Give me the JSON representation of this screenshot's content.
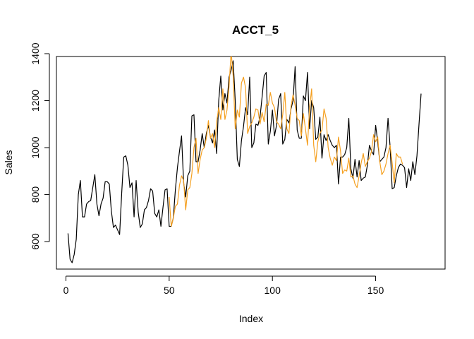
{
  "chart_data": {
    "type": "line",
    "title": "ACCT_5",
    "xlabel": "Index",
    "ylabel": "Sales",
    "xlim": [
      1,
      177
    ],
    "ylim": [
      510,
      1400
    ],
    "xticks": [
      0,
      50,
      100,
      150
    ],
    "yticks": [
      600,
      800,
      1000,
      1200,
      1400
    ],
    "grid": false,
    "colors": {
      "actual": "#000000",
      "fitted": "#f5a020"
    },
    "series": [
      {
        "key": "actual",
        "x_start": 1,
        "values": [
          635,
          525,
          510,
          545,
          610,
          800,
          860,
          705,
          705,
          760,
          770,
          775,
          830,
          885,
          760,
          710,
          760,
          785,
          855,
          855,
          845,
          730,
          660,
          670,
          650,
          630,
          805,
          960,
          965,
          925,
          830,
          850,
          705,
          860,
          725,
          660,
          675,
          735,
          745,
          775,
          825,
          815,
          720,
          705,
          735,
          665,
          745,
          820,
          825,
          665,
          665,
          700,
          820,
          915,
          985,
          1050,
          850,
          790,
          880,
          900,
          1135,
          1140,
          940,
          940,
          990,
          1060,
          1000,
          1060,
          1095,
          1045,
          1020,
          1075,
          975,
          1200,
          1305,
          1160,
          1230,
          1190,
          1300,
          1330,
          1370,
          1200,
          950,
          920,
          1030,
          1090,
          1170,
          1140,
          1300,
          1000,
          1020,
          1100,
          1095,
          1130,
          1215,
          1305,
          1320,
          1015,
          1070,
          1160,
          1050,
          1095,
          1205,
          1230,
          1015,
          1035,
          1120,
          1105,
          1165,
          1200,
          1345,
          1075,
          1040,
          1040,
          1220,
          1200,
          1320,
          1080,
          1200,
          1170,
          1035,
          1045,
          1130,
          955,
          1055,
          1030,
          1055,
          1030,
          1010,
          1000,
          1010,
          845,
          960,
          960,
          970,
          1000,
          1125,
          910,
          870,
          950,
          875,
          945,
          860,
          870,
          875,
          925,
          1010,
          985,
          970,
          1095,
          1025,
          940,
          950,
          960,
          1000,
          1125,
          1005,
          825,
          830,
          880,
          915,
          930,
          925,
          915,
          830,
          910,
          860,
          940,
          885,
          965,
          1100,
          1230
        ]
      },
      {
        "key": "fitted",
        "x_start": 50,
        "values": [
          790,
          665,
          700,
          750,
          760,
          840,
          880,
          860,
          735,
          820,
          830,
          890,
          1000,
          1040,
          890,
          950,
          990,
          1000,
          1040,
          1115,
          1040,
          1060,
          1000,
          1110,
          1170,
          1120,
          1250,
          1120,
          1160,
          1260,
          1410,
          1305,
          1080,
          1160,
          1130,
          1275,
          1300,
          1255,
          1060,
          1090,
          1105,
          1130,
          1165,
          1160,
          1100,
          1150,
          1110,
          1185,
          1180,
          1235,
          1190,
          1170,
          1110,
          1100,
          1080,
          1140,
          1235,
          1080,
          1060,
          1175,
          1225,
          1180,
          1125,
          1115,
          1050,
          1145,
          1080,
          1010,
          1170,
          1250,
          1010,
          940,
          1025,
          1060,
          1075,
          1165,
          1125,
          1000,
          955,
          925,
          960,
          945,
          1045,
          985,
          890,
          905,
          900,
          955,
          875,
          880,
          845,
          830,
          880,
          935,
          975,
          920,
          940,
          955,
          985,
          1055,
          1025,
          1045,
          940,
          885,
          900,
          930,
          975,
          1010,
          935,
          850,
          975,
          960,
          960,
          930
        ]
      }
    ]
  }
}
